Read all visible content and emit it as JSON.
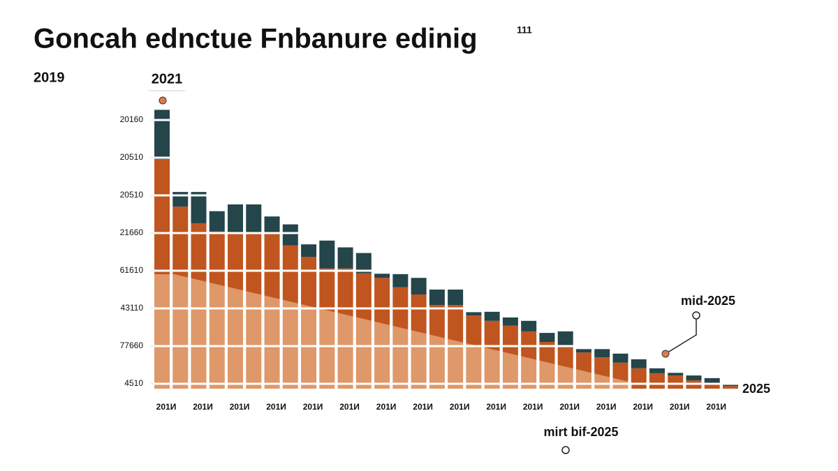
{
  "chart_data": {
    "type": "bar",
    "title": "Goncah ednctue Fnbanure edinig",
    "title_superscript": "111",
    "annotations": [
      "2019",
      "2021",
      "mid-2025",
      "2025",
      "mirt bif-2025"
    ],
    "categories": [
      "201И",
      null,
      "201И",
      null,
      "201И",
      null,
      "201И",
      null,
      "201И",
      null,
      "201И",
      null,
      "201И",
      null,
      "201И",
      null,
      "201И",
      null,
      "201И",
      null,
      "201И",
      null,
      "201И",
      null,
      "201И",
      null,
      "201И",
      null,
      "201И",
      null,
      "201И",
      null
    ],
    "stacked": true,
    "series": [
      {
        "color": "#c0551f",
        "values": [
          6.09,
          4.83,
          4.39,
          4.17,
          4.11,
          4.11,
          4.11,
          3.8,
          3.5,
          3.19,
          3.19,
          3.06,
          2.94,
          2.69,
          2.5,
          2.22,
          2.22,
          1.94,
          1.8,
          1.67,
          1.52,
          1.24,
          1.15,
          0.96,
          0.83,
          0.69,
          0.54,
          0.41,
          0.35,
          0.22,
          0.13,
          0.07
        ]
      },
      {
        "color": "#24454a",
        "values": [
          1.31,
          0.39,
          0.83,
          0.54,
          0.78,
          0.78,
          0.46,
          0.56,
          0.33,
          0.74,
          0.56,
          0.54,
          0.11,
          0.35,
          0.44,
          0.41,
          0.41,
          0.09,
          0.24,
          0.22,
          0.28,
          0.24,
          0.37,
          0.09,
          0.22,
          0.24,
          0.24,
          0.13,
          0.07,
          0.13,
          0.15,
          0.06
        ]
      }
    ],
    "ylim": [
      0,
      7.5
    ],
    "yticks": [
      {
        "value": 0.13,
        "label": "4510"
      },
      {
        "value": 1.13,
        "label": "77660"
      },
      {
        "value": 2.13,
        "label": "43110"
      },
      {
        "value": 3.13,
        "label": "61610"
      },
      {
        "value": 4.13,
        "label": "21660"
      },
      {
        "value": 5.13,
        "label": "20510"
      },
      {
        "value": 6.13,
        "label": "20510"
      },
      {
        "value": 7.13,
        "label": "20160"
      }
    ],
    "grid": true
  }
}
